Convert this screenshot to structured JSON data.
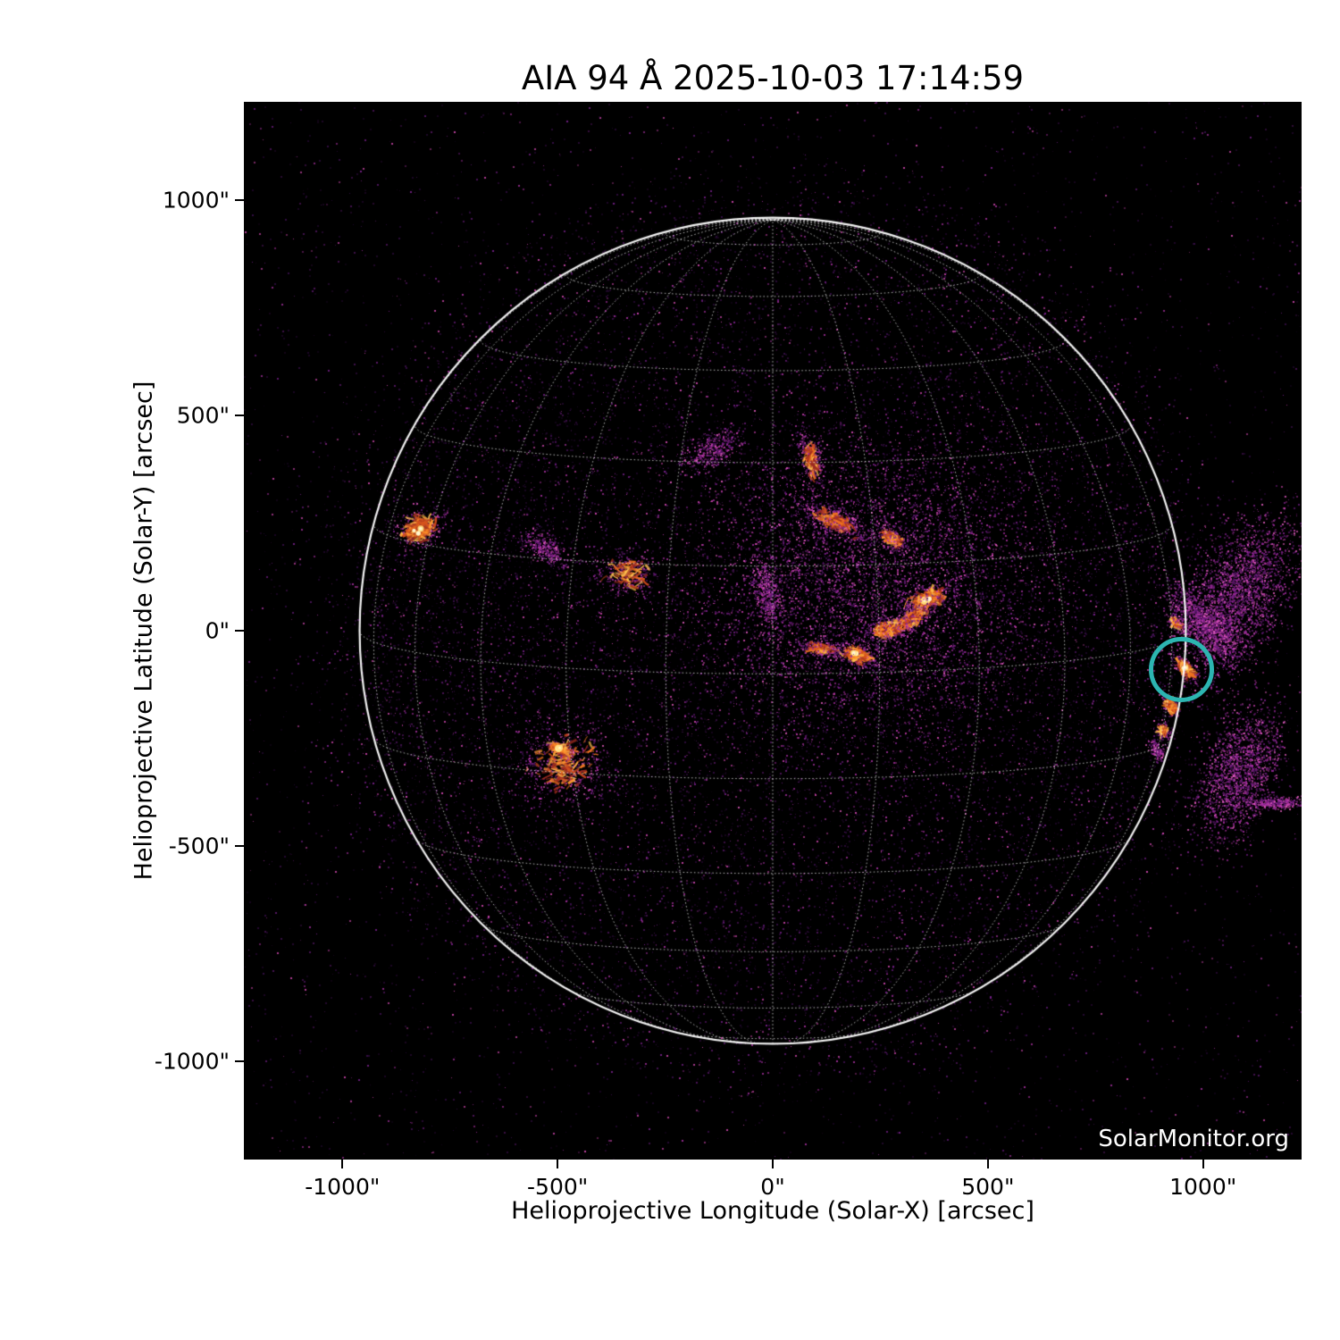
{
  "figure": {
    "title": "AIA 94 Å 2025-10-03 17:14:59",
    "watermark": "SolarMonitor.org",
    "background": "#ffffff",
    "image_background": "#000000"
  },
  "chart_data": {
    "type": "heatmap",
    "description": "SDO/AIA 94 Å extreme-ultraviolet full-disk solar image with Stonyhurst heliographic grid overlay and flare region annotation",
    "instrument": "AIA",
    "wavelength": "94 Å",
    "observation_time": "2025-10-03 17:14:59",
    "title": "AIA 94 Å 2025-10-03 17:14:59",
    "xlabel": "Helioprojective Longitude (Solar-X) [arcsec]",
    "ylabel": "Helioprojective Latitude (Solar-Y) [arcsec]",
    "xlim": [
      -1229,
      1229
    ],
    "ylim": [
      -1229,
      1229
    ],
    "x_ticks": [
      {
        "value": -1000,
        "label": "-1000\""
      },
      {
        "value": -500,
        "label": "-500\""
      },
      {
        "value": 0,
        "label": "0\""
      },
      {
        "value": 500,
        "label": "500\""
      },
      {
        "value": 1000,
        "label": "1000\""
      }
    ],
    "y_ticks": [
      {
        "value": 1000,
        "label": "1000\""
      },
      {
        "value": 500,
        "label": "500\""
      },
      {
        "value": 0,
        "label": "0\""
      },
      {
        "value": -500,
        "label": "-500\""
      },
      {
        "value": -1000,
        "label": "-1000\""
      }
    ],
    "solar_disk": {
      "radius_arcsec": 960,
      "grid_spacing_deg": 15,
      "b0_deg": 6.0,
      "grid_color": "rgba(255,255,255,0.72)",
      "limb_color": "rgba(255,255,255,0.95)"
    },
    "annotation": {
      "shape": "circle",
      "x_arcsec": 950,
      "y_arcsec": -90,
      "radius_arcsec": 76,
      "color": "#2cb5b1",
      "stroke_px": 5
    },
    "palette": {
      "noise": [
        "#24082f",
        "#3b0f4e",
        "#571768",
        "#7c2190",
        "#a6309f",
        "#d649b4"
      ],
      "cloud": [
        "#5f1770",
        "#83218f",
        "#a62ba2",
        "#c93eb0",
        "#e95fc4"
      ],
      "hot": [
        "#9c2a20",
        "#cf4a1d",
        "#ef7120",
        "#ff9830",
        "#ffc14e"
      ],
      "core": [
        "#ffdf7e",
        "#fff7d6"
      ]
    },
    "active_regions": [
      {
        "name": "AR-east-bright",
        "x": -822,
        "y": 237,
        "spread": 28,
        "level": "bright",
        "core": true,
        "angle": -20,
        "aspect": 0.7
      },
      {
        "name": "faint-chain-east",
        "x": -527,
        "y": 189,
        "spread": 30,
        "level": "faint",
        "core": false,
        "angle": 30,
        "aspect": 0.5
      },
      {
        "name": "AR-small-ring",
        "x": -341,
        "y": 133,
        "spread": 32,
        "level": "medium",
        "core": false,
        "angle": 0,
        "aspect": 0.8
      },
      {
        "name": "faint-north-1",
        "x": -143,
        "y": 417,
        "spread": 36,
        "level": "faint",
        "core": false,
        "angle": -30,
        "aspect": 0.5
      },
      {
        "name": "faint-north-2",
        "x": 91,
        "y": 397,
        "spread": 30,
        "level": "medium",
        "core": false,
        "angle": 80,
        "aspect": 0.45
      },
      {
        "name": "faint-center",
        "x": -12,
        "y": 85,
        "spread": 40,
        "level": "faint",
        "core": false,
        "angle": 80,
        "aspect": 0.4
      },
      {
        "name": "arc-chain-ne",
        "x": 143,
        "y": 255,
        "spread": 40,
        "level": "medium",
        "core": false,
        "angle": 25,
        "aspect": 0.35
      },
      {
        "name": "arc-chain-bright",
        "x": 278,
        "y": 214,
        "spread": 18,
        "level": "bright",
        "core": false,
        "angle": 35,
        "aspect": 0.5
      },
      {
        "name": "AR-loop-main",
        "x": 361,
        "y": 73,
        "spread": 30,
        "level": "brightest",
        "core": true,
        "angle": -25,
        "aspect": 0.45
      },
      {
        "name": "AR-loop-2",
        "x": 324,
        "y": 29,
        "spread": 22,
        "level": "bright",
        "core": false,
        "angle": -35,
        "aspect": 0.5
      },
      {
        "name": "AR-arcs-3",
        "x": 268,
        "y": 2,
        "spread": 26,
        "level": "bright",
        "core": false,
        "angle": -15,
        "aspect": 0.45
      },
      {
        "name": "AR-core-blob",
        "x": 195,
        "y": -56,
        "spread": 24,
        "level": "brightest",
        "core": true,
        "angle": 15,
        "aspect": 0.5
      },
      {
        "name": "AR-streak-west",
        "x": 112,
        "y": -42,
        "spread": 26,
        "level": "medium",
        "core": false,
        "angle": 5,
        "aspect": 0.35
      },
      {
        "name": "diffuse-ring",
        "x": 237,
        "y": 96,
        "spread": 195,
        "level": "faint",
        "core": false,
        "angle": 0,
        "aspect": 0.9,
        "n_scale": 2.2
      },
      {
        "name": "AR-south-ring",
        "x": -484,
        "y": -314,
        "spread": 55,
        "level": "medium",
        "core": false,
        "angle": 0,
        "aspect": 0.9
      },
      {
        "name": "AR-south-core",
        "x": -494,
        "y": -274,
        "spread": 16,
        "level": "bright",
        "core": true,
        "angle": 25,
        "aspect": 0.4
      },
      {
        "name": "limb-spot-n",
        "x": 939,
        "y": 17,
        "spread": 12,
        "level": "medium",
        "core": false,
        "angle": 50,
        "aspect": 0.6
      },
      {
        "name": "limb-flare",
        "x": 958,
        "y": -88,
        "spread": 18,
        "level": "brightest",
        "core": true,
        "angle": 48,
        "aspect": 0.45
      },
      {
        "name": "limb-spot-s1",
        "x": 924,
        "y": -174,
        "spread": 14,
        "level": "bright",
        "core": false,
        "angle": 60,
        "aspect": 0.5
      },
      {
        "name": "limb-spot-s2",
        "x": 907,
        "y": -233,
        "spread": 12,
        "level": "medium",
        "core": false,
        "angle": 60,
        "aspect": 0.6
      },
      {
        "name": "limb-spot-s3",
        "x": 893,
        "y": -278,
        "spread": 12,
        "level": "faint",
        "core": false,
        "angle": 60,
        "aspect": 0.6
      },
      {
        "name": "flare-plume",
        "x": 1000,
        "y": 20,
        "spread": 55,
        "level": "faint",
        "core": false,
        "angle": 48,
        "aspect": 0.4,
        "n_scale": 1.6
      },
      {
        "name": "offlimb-plume-n",
        "x": 1075,
        "y": 75,
        "spread": 95,
        "level": "faint",
        "core": false,
        "angle": -60,
        "aspect": 0.55,
        "n_scale": 2.5
      },
      {
        "name": "offlimb-plume-s",
        "x": 1085,
        "y": -330,
        "spread": 80,
        "level": "faint",
        "core": false,
        "angle": -70,
        "aspect": 0.5,
        "n_scale": 2.0
      },
      {
        "name": "offlimb-streak",
        "x": 1170,
        "y": -400,
        "spread": 30,
        "level": "faint",
        "core": false,
        "angle": 0,
        "aspect": 0.25
      }
    ]
  }
}
